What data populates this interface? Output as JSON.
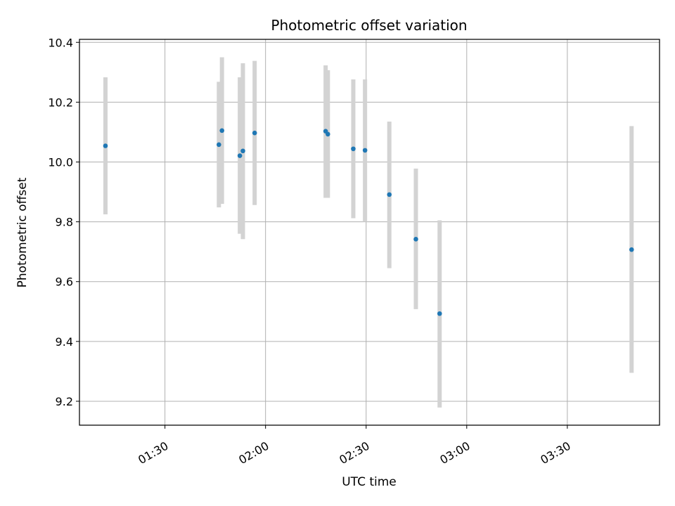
{
  "chart_data": {
    "type": "scatter",
    "title": "Photometric offset variation",
    "xlabel": "UTC time",
    "ylabel": "Photometric offset",
    "x_unit": "UTC time of day (HH:MM)",
    "xlim": [
      "01:04:30",
      "03:57:30"
    ],
    "ylim": [
      9.12,
      10.41
    ],
    "grid": true,
    "x_ticks": [
      "01:30",
      "02:00",
      "02:30",
      "03:00",
      "03:30"
    ],
    "y_ticks": [
      9.2,
      9.4,
      9.6,
      9.8,
      10.0,
      10.2,
      10.4
    ],
    "y_tick_labels": [
      "9.2",
      "9.4",
      "9.6",
      "9.8",
      "10.0",
      "10.2",
      "10.4"
    ],
    "point_color": "#1f77b4",
    "errorbar_color": "#d3d3d3",
    "points": [
      {
        "x": "01:12:15",
        "y": 10.054,
        "y_low": 9.825,
        "y_high": 10.283
      },
      {
        "x": "01:46:05",
        "y": 10.058,
        "y_low": 9.848,
        "y_high": 10.268
      },
      {
        "x": "01:47:00",
        "y": 10.105,
        "y_low": 9.86,
        "y_high": 10.35
      },
      {
        "x": "01:52:20",
        "y": 10.021,
        "y_low": 9.76,
        "y_high": 10.283
      },
      {
        "x": "01:53:15",
        "y": 10.037,
        "y_low": 9.742,
        "y_high": 10.33
      },
      {
        "x": "01:56:45",
        "y": 10.097,
        "y_low": 9.856,
        "y_high": 10.338
      },
      {
        "x": "02:17:55",
        "y": 10.103,
        "y_low": 9.88,
        "y_high": 10.323
      },
      {
        "x": "02:18:35",
        "y": 10.093,
        "y_low": 9.88,
        "y_high": 10.307
      },
      {
        "x": "02:26:10",
        "y": 10.044,
        "y_low": 9.812,
        "y_high": 10.276
      },
      {
        "x": "02:29:40",
        "y": 10.039,
        "y_low": 9.8,
        "y_high": 10.276
      },
      {
        "x": "02:36:55",
        "y": 9.891,
        "y_low": 9.645,
        "y_high": 10.135
      },
      {
        "x": "02:44:50",
        "y": 9.742,
        "y_low": 9.508,
        "y_high": 9.978
      },
      {
        "x": "02:51:55",
        "y": 9.493,
        "y_low": 9.179,
        "y_high": 9.805
      },
      {
        "x": "03:49:10",
        "y": 9.707,
        "y_low": 9.295,
        "y_high": 10.12
      }
    ]
  }
}
